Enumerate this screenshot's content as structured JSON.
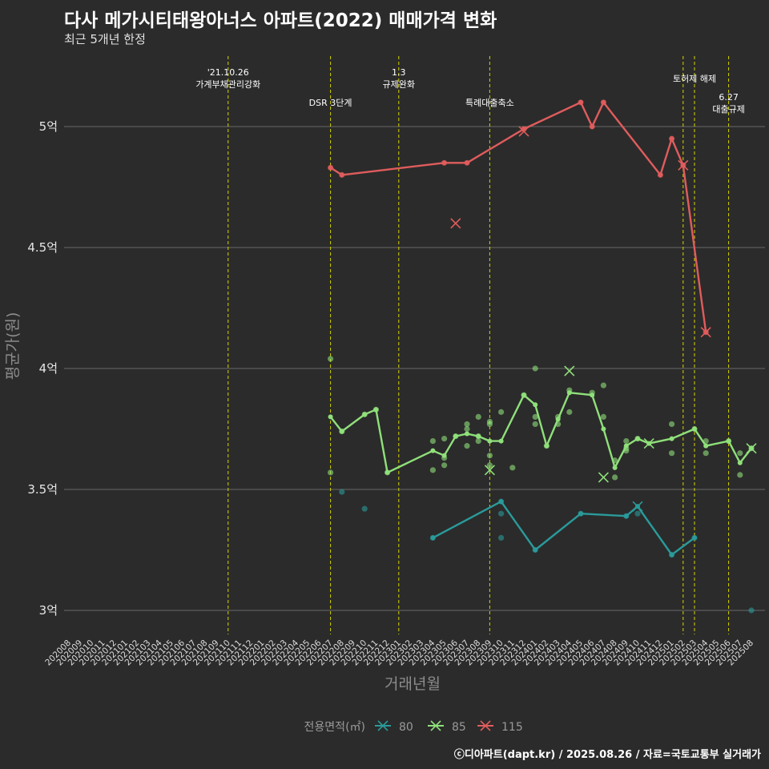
{
  "title": "다사 메가시티태왕아너스 아파트(2022) 매매가격 변화",
  "subtitle": "최근 5개년 한정",
  "caption": "ⓒ디아파트(dapt.kr) / 2025.08.26 / 자료=국토교통부 실거래가",
  "chart_data": {
    "type": "line",
    "xlabel": "거래년월",
    "ylabel": "평균가(원)",
    "ylim": [
      2.9,
      5.3
    ],
    "yticks": [
      3,
      3.5,
      4,
      4.5,
      5
    ],
    "ytick_labels": [
      "3억",
      "3.5억",
      "4억",
      "4.5억",
      "5억"
    ],
    "categories": [
      "202008",
      "202009",
      "202010",
      "202011",
      "202012",
      "202101",
      "202102",
      "202103",
      "202104",
      "202105",
      "202106",
      "202107",
      "202108",
      "202109",
      "202110",
      "202111",
      "202112",
      "202201",
      "202202",
      "202203",
      "202204",
      "202205",
      "202206",
      "202207",
      "202208",
      "202209",
      "202210",
      "202211",
      "202212",
      "202301",
      "202302",
      "202303",
      "202304",
      "202305",
      "202306",
      "202307",
      "202308",
      "202309",
      "202310",
      "202311",
      "202312",
      "202401",
      "202402",
      "202403",
      "202404",
      "202405",
      "202406",
      "202407",
      "202408",
      "202409",
      "202410",
      "202411",
      "202412",
      "202501",
      "202502",
      "202503",
      "202504",
      "202505",
      "202506",
      "202507",
      "202508"
    ],
    "legend_title": "전용면적(㎡)",
    "events": [
      {
        "month": "202110",
        "lines": [
          "'21.10.26",
          "가계부채관리강화"
        ],
        "row": 0
      },
      {
        "month": "202207",
        "lines": [
          "DSR 3단계"
        ],
        "row": 1
      },
      {
        "month": "202301",
        "lines": [
          "1.3",
          "규제완화"
        ],
        "row": 0
      },
      {
        "month": "202309",
        "lines": [
          "특례대출축소"
        ],
        "row": 1
      },
      {
        "month": "202502",
        "lines": [],
        "row": 0
      },
      {
        "month": "202503",
        "lines": [
          "토허제 해제"
        ],
        "row": 0,
        "offset": -1
      },
      {
        "month": "202506",
        "lines": [
          "6.27",
          "대출규제"
        ],
        "row": 2
      }
    ],
    "series": [
      {
        "name": "80",
        "color": "#2a9a9a",
        "line": [
          [
            "202304",
            3.3
          ],
          [
            "202310",
            3.45
          ],
          [
            "202401",
            3.25
          ],
          [
            "202405",
            3.4
          ],
          [
            "202409",
            3.39
          ],
          [
            "202410",
            3.43
          ],
          [
            "202501",
            3.23
          ],
          [
            "202503",
            3.3
          ]
        ],
        "points": [
          [
            "202208",
            3.49
          ],
          [
            "202210",
            3.42
          ],
          [
            "202304",
            3.3
          ],
          [
            "202310",
            3.45
          ],
          [
            "202310",
            3.4
          ],
          [
            "202310",
            3.3
          ],
          [
            "202401",
            3.25
          ],
          [
            "202405",
            3.4
          ],
          [
            "202409",
            3.39
          ],
          [
            "202410",
            3.4
          ],
          [
            "202501",
            3.23
          ],
          [
            "202503",
            3.3
          ],
          [
            "202508",
            3.0
          ]
        ],
        "markers": [
          [
            "202410",
            3.43
          ]
        ]
      },
      {
        "name": "85",
        "color": "#8fe07a",
        "line": [
          [
            "202207",
            3.8
          ],
          [
            "202208",
            3.74
          ],
          [
            "202210",
            3.81
          ],
          [
            "202211",
            3.83
          ],
          [
            "202212",
            3.57
          ],
          [
            "202304",
            3.66
          ],
          [
            "202305",
            3.64
          ],
          [
            "202306",
            3.72
          ],
          [
            "202307",
            3.73
          ],
          [
            "202308",
            3.72
          ],
          [
            "202309",
            3.7
          ],
          [
            "202310",
            3.7
          ],
          [
            "202312",
            3.89
          ],
          [
            "202401",
            3.85
          ],
          [
            "202402",
            3.68
          ],
          [
            "202403",
            3.79
          ],
          [
            "202404",
            3.9
          ],
          [
            "202406",
            3.89
          ],
          [
            "202407",
            3.75
          ],
          [
            "202408",
            3.59
          ],
          [
            "202409",
            3.68
          ],
          [
            "202410",
            3.71
          ],
          [
            "202411",
            3.69
          ],
          [
            "202501",
            3.71
          ],
          [
            "202503",
            3.75
          ],
          [
            "202504",
            3.68
          ],
          [
            "202506",
            3.7
          ],
          [
            "202507",
            3.61
          ],
          [
            "202508",
            3.67
          ]
        ],
        "points": [
          [
            "202207",
            4.04
          ],
          [
            "202207",
            3.57
          ],
          [
            "202208",
            3.74
          ],
          [
            "202210",
            3.81
          ],
          [
            "202211",
            3.83
          ],
          [
            "202212",
            3.57
          ],
          [
            "202304",
            3.7
          ],
          [
            "202304",
            3.58
          ],
          [
            "202305",
            3.71
          ],
          [
            "202305",
            3.63
          ],
          [
            "202305",
            3.6
          ],
          [
            "202306",
            3.72
          ],
          [
            "202307",
            3.77
          ],
          [
            "202307",
            3.75
          ],
          [
            "202307",
            3.68
          ],
          [
            "202308",
            3.8
          ],
          [
            "202308",
            3.72
          ],
          [
            "202308",
            3.7
          ],
          [
            "202309",
            3.78
          ],
          [
            "202309",
            3.77
          ],
          [
            "202309",
            3.64
          ],
          [
            "202309",
            3.6
          ],
          [
            "202310",
            3.82
          ],
          [
            "202311",
            3.59
          ],
          [
            "202312",
            3.89
          ],
          [
            "202401",
            4.0
          ],
          [
            "202401",
            3.8
          ],
          [
            "202401",
            3.77
          ],
          [
            "202402",
            3.68
          ],
          [
            "202403",
            3.8
          ],
          [
            "202403",
            3.77
          ],
          [
            "202404",
            3.91
          ],
          [
            "202404",
            3.82
          ],
          [
            "202406",
            3.9
          ],
          [
            "202407",
            3.93
          ],
          [
            "202407",
            3.8
          ],
          [
            "202408",
            3.62
          ],
          [
            "202408",
            3.55
          ],
          [
            "202409",
            3.7
          ],
          [
            "202409",
            3.67
          ],
          [
            "202409",
            3.66
          ],
          [
            "202410",
            3.71
          ],
          [
            "202501",
            3.77
          ],
          [
            "202501",
            3.65
          ],
          [
            "202503",
            3.75
          ],
          [
            "202504",
            3.7
          ],
          [
            "202504",
            3.65
          ],
          [
            "202506",
            3.7
          ],
          [
            "202507",
            3.65
          ],
          [
            "202507",
            3.56
          ],
          [
            "202508",
            3.67
          ]
        ],
        "markers": [
          [
            "202309",
            3.58
          ],
          [
            "202404",
            3.99
          ],
          [
            "202407",
            3.55
          ],
          [
            "202411",
            3.69
          ],
          [
            "202508",
            3.67
          ]
        ]
      },
      {
        "name": "115",
        "color": "#e05c5c",
        "line": [
          [
            "202207",
            4.83
          ],
          [
            "202208",
            4.8
          ],
          [
            "202305",
            4.85
          ],
          [
            "202307",
            4.85
          ],
          [
            "202312",
            4.99
          ],
          [
            "202405",
            5.1
          ],
          [
            "202406",
            5.0
          ],
          [
            "202407",
            5.1
          ],
          [
            "202412",
            4.8
          ],
          [
            "202501",
            4.95
          ],
          [
            "202502",
            4.84
          ],
          [
            "202504",
            4.15
          ]
        ],
        "points": [
          [
            "202207",
            4.83
          ],
          [
            "202208",
            4.8
          ],
          [
            "202305",
            4.85
          ],
          [
            "202307",
            4.85
          ],
          [
            "202312",
            4.99
          ],
          [
            "202405",
            5.1
          ],
          [
            "202406",
            5.0
          ],
          [
            "202407",
            5.1
          ],
          [
            "202412",
            4.8
          ],
          [
            "202501",
            4.95
          ],
          [
            "202502",
            4.84
          ],
          [
            "202504",
            4.15
          ]
        ],
        "markers": [
          [
            "202306",
            4.6
          ],
          [
            "202312",
            4.98
          ],
          [
            "202502",
            4.84
          ],
          [
            "202504",
            4.15
          ]
        ]
      }
    ]
  }
}
